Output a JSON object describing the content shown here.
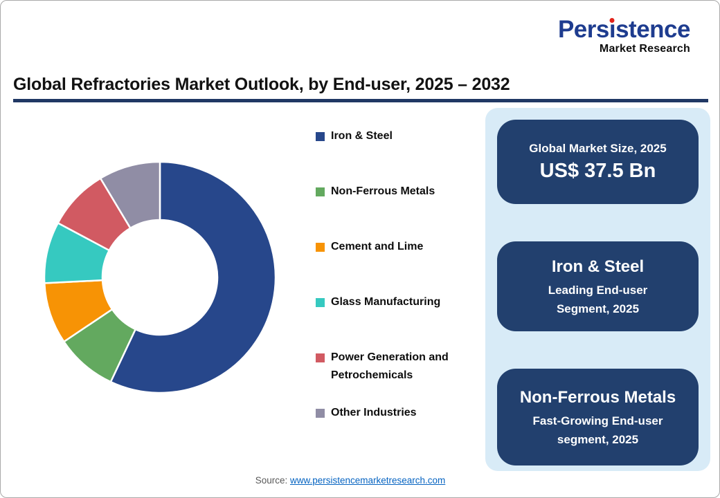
{
  "logo": {
    "brand": "Persistence",
    "brand_pre_dot": "Pers",
    "brand_post_dot": "stence",
    "tagline": "Market Research",
    "brand_color": "#1E3C8F",
    "dot_color": "#E2231A"
  },
  "header": {
    "title": "Global Refractories Market Outlook, by End-user, 2025 – 2032",
    "rule_color": "#203864"
  },
  "chart_data": {
    "type": "pie",
    "subtype": "donut",
    "title": "Global Refractories Market Outlook, by End-user, 2025 – 2032",
    "categories": [
      "Iron & Steel",
      "Non-Ferrous Metals",
      "Cement and Lime",
      "Glass Manufacturing",
      "Power Generation and Petrochemicals",
      "Other Industries"
    ],
    "values": [
      57,
      8.6,
      8.6,
      8.6,
      8.6,
      8.6
    ],
    "unit": "% share, estimated from arc angles (no data labels shown)",
    "colors": [
      "#27478B",
      "#63A95F",
      "#F79305",
      "#36C9C0",
      "#D15A62",
      "#908DA5"
    ],
    "start_angle_deg": 0,
    "direction": "clockwise",
    "inner_radius_ratio": 0.49,
    "legend_position": "right",
    "data_labels": false,
    "grid": false
  },
  "panel": {
    "bg": "#D8EBF7",
    "card_bg": "#22406E",
    "cards": [
      {
        "title": "Global Market Size, 2025",
        "value": "US$ 37.5 Bn"
      },
      {
        "title": "Iron & Steel",
        "subtitle": "Leading End-user Segment, 2025"
      },
      {
        "title": "Non-Ferrous Metals",
        "subtitle": "Fast-Growing End-user segment, 2025"
      }
    ]
  },
  "source": {
    "label": "Source: ",
    "link_text": "www.persistencemarketresearch.com"
  }
}
